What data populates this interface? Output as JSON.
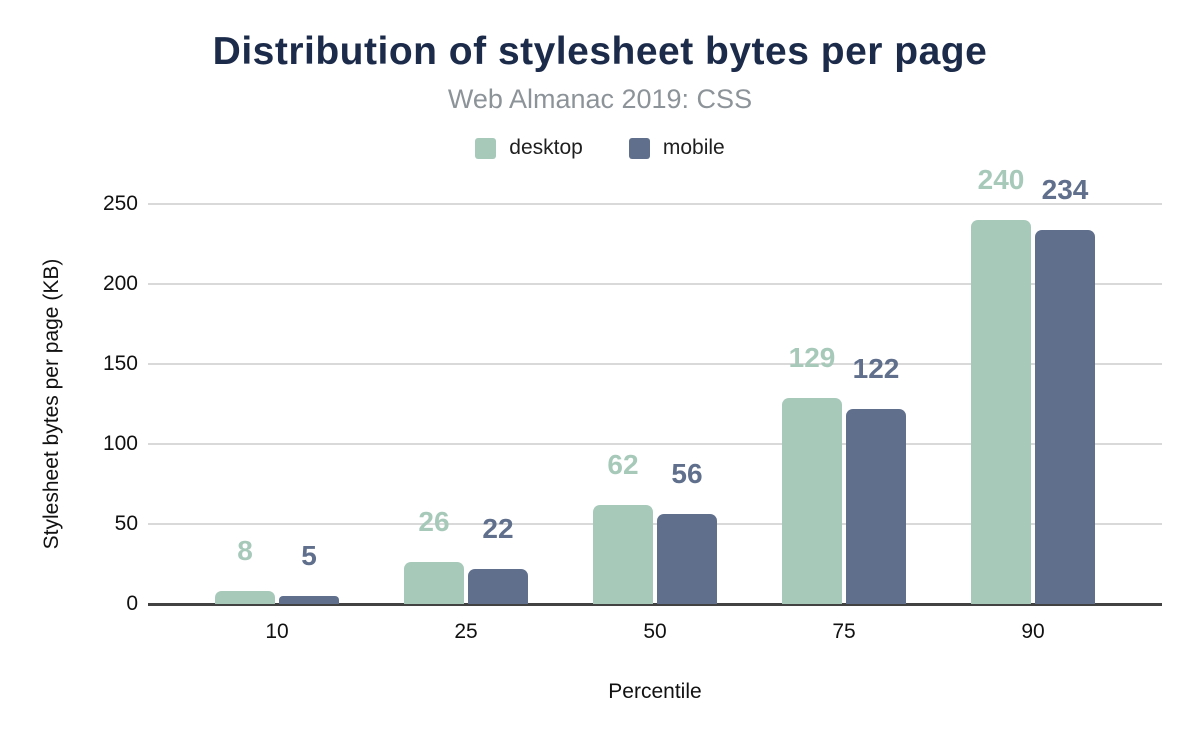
{
  "header": {
    "title": "Distribution of stylesheet bytes per page",
    "subtitle": "Web Almanac 2019: CSS"
  },
  "legend": [
    {
      "label": "desktop",
      "color": "#a7c9ba"
    },
    {
      "label": "mobile",
      "color": "#5f6f8c"
    }
  ],
  "axes": {
    "x_title": "Percentile",
    "y_title": "Stylesheet bytes per page (KB)"
  },
  "colors": {
    "title": "#1c2b4a",
    "subtitle": "#8d9499",
    "grid": "#d9d9d9",
    "axis_line": "#424242",
    "background": "#ffffff"
  },
  "chart_data": {
    "type": "bar",
    "title": "Distribution of stylesheet bytes per page",
    "subtitle": "Web Almanac 2019: CSS",
    "categories": [
      "10",
      "25",
      "50",
      "75",
      "90"
    ],
    "series": [
      {
        "name": "desktop",
        "color": "#a7c9ba",
        "values": [
          8,
          26,
          62,
          129,
          240
        ]
      },
      {
        "name": "mobile",
        "color": "#5f6f8c",
        "values": [
          5,
          22,
          56,
          122,
          234
        ]
      }
    ],
    "xlabel": "Percentile",
    "ylabel": "Stylesheet bytes per page (KB)",
    "ylim": [
      0,
      250
    ],
    "yticks": [
      0,
      50,
      100,
      150,
      200,
      250
    ],
    "grid": true,
    "legend_position": "top",
    "bar_labels": true
  }
}
